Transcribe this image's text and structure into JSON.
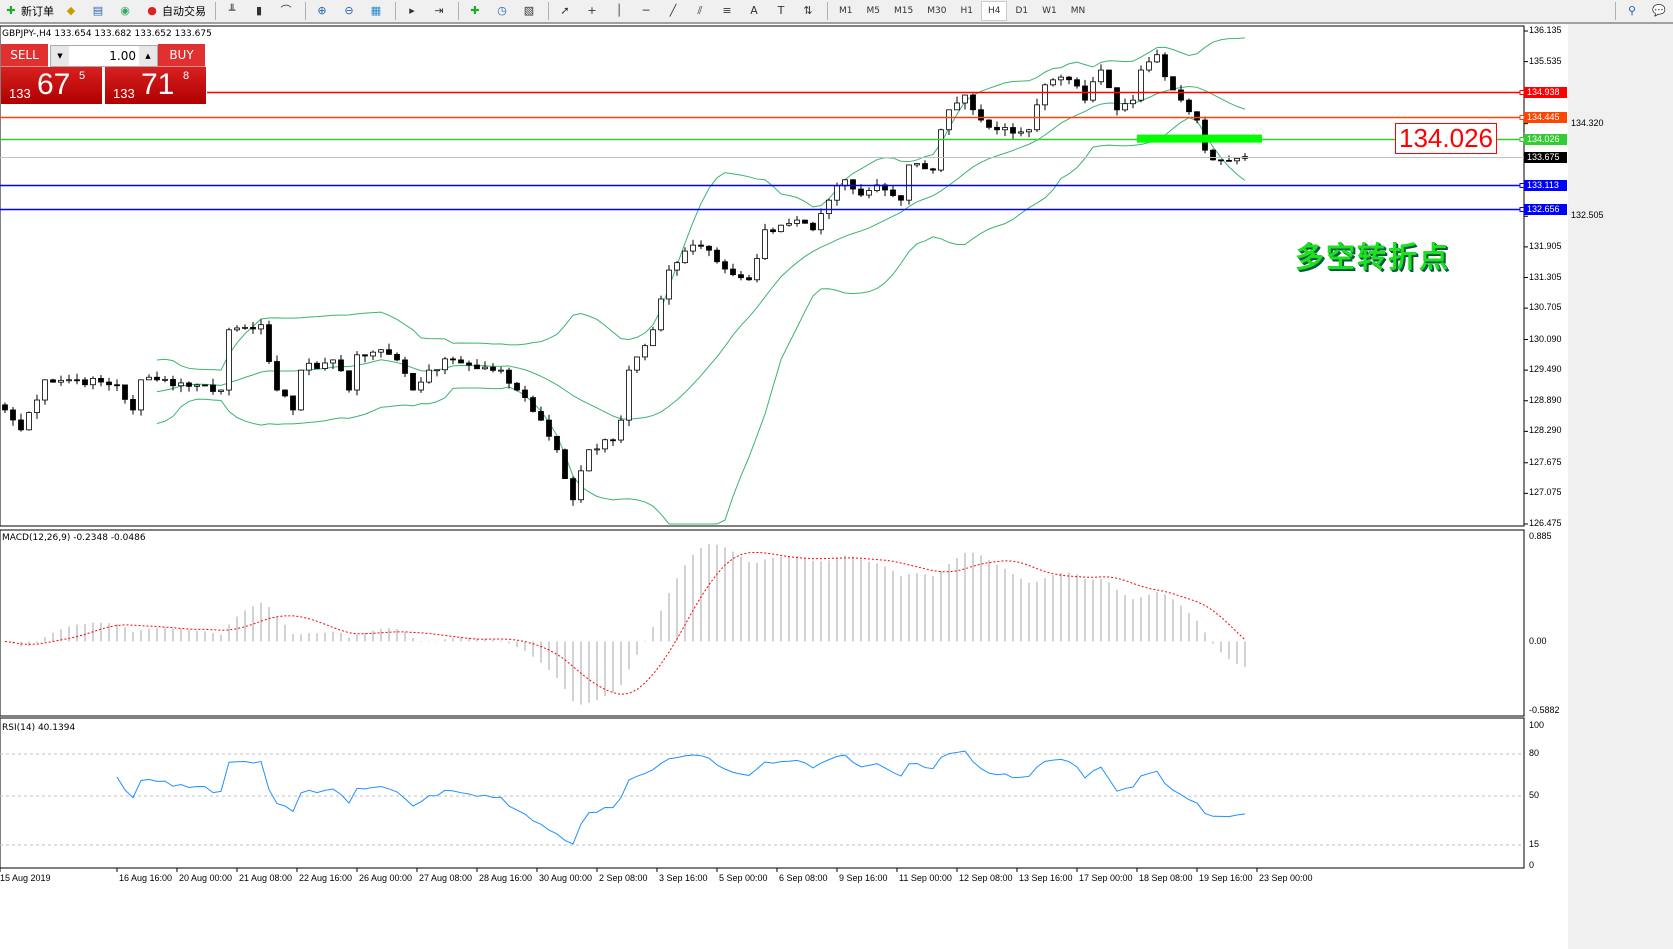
{
  "toolbar": {
    "new_order": "新订单",
    "auto_trade": "自动交易",
    "timeframes": [
      "M1",
      "M5",
      "M15",
      "M30",
      "H1",
      "H4",
      "D1",
      "W1",
      "MN"
    ],
    "active_timeframe": "H4",
    "icons": [
      "new-order-icon",
      "experts-icon",
      "history-icon",
      "signal-icon",
      "auto-trading-icon",
      "bar-chart-icon",
      "candlestick-icon",
      "line-chart-icon",
      "zoom-in-icon",
      "zoom-out-icon",
      "tile-windows-icon",
      "auto-scroll-icon",
      "chart-shift-icon",
      "indicators-icon",
      "periods-icon",
      "templates-icon",
      "cursor-icon",
      "crosshair-icon",
      "vertical-line-icon",
      "horizontal-line-icon",
      "trendline-icon",
      "equidistant-channel-icon",
      "fibonacci-icon",
      "text-icon",
      "text-label-icon",
      "arrows-icon",
      "search-icon",
      "chat-icon"
    ]
  },
  "chart": {
    "header": "GBPJPY-,H4  133.654 133.682 133.652 133.675",
    "trade_panel": {
      "sell": "SELL",
      "buy": "BUY",
      "lot": "1.00",
      "bid_big": "133",
      "bid_main": "67",
      "bid_pip": "5",
      "ask_big": "133",
      "ask_main": "71",
      "ask_pip": "8"
    },
    "callout": "134.026",
    "note": "多空转折点",
    "macd_title": "MACD(12,26,9) -0.2348 -0.0486",
    "rsi_title": "RSI(14) 40.1394"
  },
  "chart_data": {
    "type": "candlestick",
    "symbol": "GBPJPY-",
    "timeframe": "H4",
    "price_axis": {
      "range": [
        126.475,
        136.135
      ],
      "ticks": [
        "136.135",
        "135.535",
        "134.320",
        "132.505",
        "131.905",
        "131.305",
        "130.705",
        "130.090",
        "129.490",
        "128.890",
        "128.290",
        "127.675",
        "127.075",
        "126.475"
      ]
    },
    "time_axis": [
      "15 Aug 2019",
      "16 Aug 16:00",
      "20 Aug 00:00",
      "21 Aug 08:00",
      "22 Aug 16:00",
      "26 Aug 00:00",
      "27 Aug 08:00",
      "28 Aug 16:00",
      "30 Aug 00:00",
      "2 Sep 08:00",
      "3 Sep 16:00",
      "5 Sep 00:00",
      "6 Sep 08:00",
      "9 Sep 16:00",
      "11 Sep 00:00",
      "12 Sep 08:00",
      "13 Sep 16:00",
      "17 Sep 00:00",
      "18 Sep 08:00",
      "19 Sep 16:00",
      "23 Sep 00:00"
    ],
    "close_keypoints": [
      [
        0,
        128.71
      ],
      [
        2,
        128.32
      ],
      [
        5,
        129.3
      ],
      [
        9,
        129.3
      ],
      [
        14,
        129.2
      ],
      [
        16,
        128.71
      ],
      [
        17,
        129.3
      ],
      [
        19,
        129.3
      ],
      [
        24,
        129.2
      ],
      [
        27,
        129.1
      ],
      [
        28,
        130.28
      ],
      [
        32,
        130.38
      ],
      [
        34,
        129.1
      ],
      [
        36,
        128.71
      ],
      [
        37,
        129.49
      ],
      [
        41,
        129.69
      ],
      [
        43,
        129.1
      ],
      [
        44,
        129.79
      ],
      [
        47,
        129.89
      ],
      [
        49,
        129.69
      ],
      [
        51,
        129.1
      ],
      [
        53,
        129.49
      ],
      [
        56,
        129.69
      ],
      [
        58,
        129.59
      ],
      [
        62,
        129.49
      ],
      [
        64,
        129.1
      ],
      [
        67,
        128.51
      ],
      [
        69,
        127.93
      ],
      [
        71,
        126.95
      ],
      [
        73,
        127.93
      ],
      [
        76,
        128.12
      ],
      [
        77,
        128.51
      ],
      [
        78,
        129.49
      ],
      [
        81,
        130.28
      ],
      [
        83,
        131.45
      ],
      [
        86,
        131.94
      ],
      [
        88,
        131.84
      ],
      [
        91,
        131.36
      ],
      [
        93,
        131.26
      ],
      [
        95,
        132.24
      ],
      [
        97,
        132.33
      ],
      [
        99,
        132.43
      ],
      [
        101,
        132.24
      ],
      [
        103,
        132.82
      ],
      [
        105,
        133.22
      ],
      [
        107,
        132.92
      ],
      [
        109,
        133.12
      ],
      [
        112,
        132.82
      ],
      [
        113,
        133.51
      ],
      [
        116,
        133.41
      ],
      [
        117,
        134.2
      ],
      [
        118,
        134.59
      ],
      [
        120,
        134.88
      ],
      [
        122,
        134.39
      ],
      [
        124,
        134.2
      ],
      [
        128,
        134.2
      ],
      [
        130,
        135.08
      ],
      [
        133,
        135.18
      ],
      [
        135,
        134.78
      ],
      [
        137,
        135.37
      ],
      [
        139,
        134.59
      ],
      [
        141,
        134.78
      ],
      [
        142,
        135.37
      ],
      [
        144,
        135.67
      ],
      [
        146,
        134.98
      ],
      [
        147,
        134.78
      ],
      [
        149,
        134.39
      ],
      [
        150,
        133.8
      ],
      [
        151,
        133.61
      ],
      [
        155,
        133.675
      ]
    ],
    "indicators": {
      "bollinger": {
        "period": 20,
        "deviation": 2,
        "color": "#3cb371"
      },
      "macd": {
        "fast": 12,
        "slow": 26,
        "signal": 9,
        "range": [
          -0.5882,
          0.885
        ],
        "ticks": [
          "0.885",
          "0.00",
          "-0.5882"
        ],
        "main": -0.2348,
        "signal_value": -0.0486
      },
      "rsi": {
        "period": 14,
        "value": 40.1394,
        "levels": [
          80,
          50,
          15
        ],
        "ticks": [
          "100",
          "80",
          "50",
          "15",
          "0"
        ]
      }
    },
    "levels": [
      {
        "price": "134.938",
        "color": "#ff0000"
      },
      {
        "price": "134.445",
        "color": "#ff4500"
      },
      {
        "price": "134.026",
        "color": "#32cd32"
      },
      {
        "price": "133.675",
        "color": "#000000",
        "bid": true
      },
      {
        "price": "133.113",
        "color": "#0000ff"
      },
      {
        "price": "132.656",
        "color": "#0000ff"
      }
    ]
  }
}
